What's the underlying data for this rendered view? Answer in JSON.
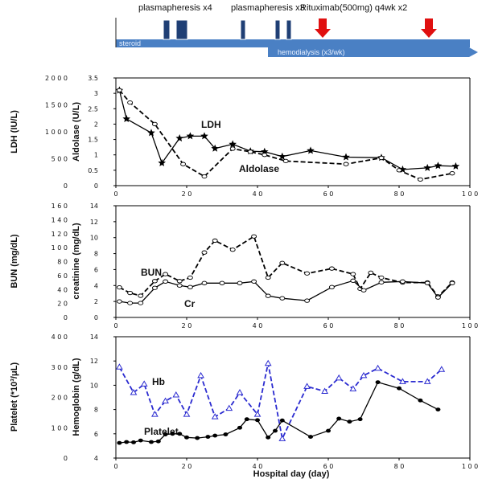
{
  "timeline": {
    "plasma1_label": "plasmapheresis x4",
    "plasma2_label": "plasmapheresis x3",
    "ritux_label": "Rituximab(500mg) q4wk x2",
    "steroid_label": "steroid",
    "hd_label": "hemodialysis (x3/wk)",
    "colors": {
      "bar": "#4a80c4",
      "block": "#1f3f75",
      "arrow": "#e01010"
    }
  },
  "xaxis": {
    "label": "Hospital day (day)",
    "ticks": [
      "0",
      "20",
      "40",
      "60",
      "80",
      "100"
    ]
  },
  "chart_data": [
    {
      "type": "line",
      "title": "",
      "x_range": [
        0,
        100
      ],
      "left_axis": {
        "label": "LDH (IU/L)",
        "ylim": [
          0,
          2000
        ],
        "ticks": [
          "0",
          "500",
          "1000",
          "1500",
          "2000"
        ]
      },
      "right_axis": {
        "label": "Aldolase (U/L)",
        "ylim": [
          0,
          3.5
        ],
        "ticks": [
          "0",
          "0.5",
          "1",
          "1.5",
          "2",
          "2.5",
          "3",
          "3.5"
        ]
      },
      "series": [
        {
          "name": "LDH",
          "axis": "left",
          "style": "solid",
          "marker": "star",
          "x": [
            1,
            3,
            10,
            13,
            18,
            21,
            25,
            28,
            33,
            38,
            42,
            47,
            55,
            65,
            75,
            81,
            88,
            91,
            96
          ],
          "y": [
            1770,
            1240,
            980,
            420,
            880,
            920,
            920,
            690,
            770,
            640,
            630,
            540,
            650,
            530,
            520,
            300,
            330,
            370,
            360
          ]
        },
        {
          "name": "Aldolase",
          "axis": "right",
          "style": "dashed",
          "marker": "circle",
          "x": [
            1,
            4,
            11,
            19,
            25,
            33,
            38,
            42,
            48,
            65,
            75,
            80,
            86,
            95
          ],
          "y": [
            3.1,
            2.7,
            2.0,
            0.7,
            0.3,
            1.2,
            1.1,
            1.0,
            0.8,
            0.7,
            0.9,
            0.5,
            0.2,
            0.4
          ]
        }
      ]
    },
    {
      "type": "line",
      "title": "",
      "x_range": [
        0,
        100
      ],
      "left_axis": {
        "label": "BUN (mg/dL)",
        "ylim": [
          0,
          160
        ],
        "ticks": [
          "0",
          "20",
          "40",
          "60",
          "80",
          "100",
          "120",
          "140",
          "160"
        ]
      },
      "right_axis": {
        "label": "creatinine (mg/dL)",
        "ylim": [
          0,
          14
        ],
        "ticks": [
          "0",
          "2",
          "4",
          "6",
          "8",
          "10",
          "12",
          "14"
        ]
      },
      "series": [
        {
          "name": "BUN",
          "axis": "left",
          "style": "dashed",
          "marker": "circle",
          "x": [
            1,
            4,
            7,
            11,
            14,
            18,
            21,
            25,
            28,
            33,
            39,
            43,
            47,
            54,
            61,
            67,
            69,
            72,
            75,
            81,
            88,
            91,
            95
          ],
          "y": [
            43,
            35,
            31,
            52,
            62,
            52,
            57,
            93,
            110,
            97,
            116,
            57,
            78,
            63,
            70,
            62,
            41,
            64,
            57,
            50,
            50,
            30,
            50
          ]
        },
        {
          "name": "Cr",
          "axis": "right",
          "style": "solid",
          "marker": "circle",
          "x": [
            1,
            4,
            7,
            11,
            14,
            18,
            21,
            25,
            30,
            35,
            39,
            43,
            47,
            54,
            61,
            67,
            70,
            75,
            81,
            88,
            91,
            95
          ],
          "y": [
            2.0,
            1.8,
            1.8,
            3.7,
            4.5,
            4.0,
            3.8,
            4.3,
            4.3,
            4.3,
            4.5,
            2.7,
            2.4,
            2.1,
            3.8,
            4.6,
            3.4,
            4.4,
            4.5,
            4.3,
            2.5,
            4.3
          ]
        }
      ]
    },
    {
      "type": "line",
      "title": "",
      "x_range": [
        0,
        100
      ],
      "left_axis": {
        "label": "Platelet (*10³/μL)",
        "ylim": [
          0,
          400
        ],
        "ticks": [
          "0",
          "100",
          "200",
          "300",
          "400"
        ]
      },
      "right_axis": {
        "label": "Hemoglobin (g/dL)",
        "ylim": [
          4,
          14
        ],
        "ticks": [
          "4",
          "6",
          "8",
          "10",
          "12",
          "14"
        ],
        "label_color": "#2b2bd0"
      },
      "series": [
        {
          "name": "Hb",
          "axis": "right",
          "style": "dashed",
          "marker": "triangle",
          "color": "#2b2bd0",
          "x": [
            1,
            5,
            8,
            11,
            14,
            17,
            20,
            24,
            28,
            32,
            35,
            40,
            43,
            47,
            54,
            59,
            63,
            67,
            70,
            74,
            81,
            88,
            92
          ],
          "y": [
            11.5,
            9.4,
            10.1,
            7.6,
            8.7,
            9.2,
            7.6,
            10.8,
            7.4,
            8.1,
            9.4,
            7.6,
            11.8,
            5.6,
            9.9,
            9.5,
            10.6,
            9.7,
            10.8,
            11.4,
            10.3,
            10.3,
            11.3
          ]
        },
        {
          "name": "Platelet",
          "axis": "left",
          "style": "solid",
          "marker": "filled-circle",
          "color": "#000000",
          "x": [
            1,
            3,
            5,
            7,
            10,
            12,
            14,
            16,
            18,
            20,
            23,
            26,
            28,
            31,
            35,
            37,
            40,
            43,
            45,
            47,
            55,
            60,
            63,
            66,
            69,
            74,
            80,
            86,
            91
          ],
          "y": [
            50,
            53,
            52,
            58,
            53,
            55,
            78,
            80,
            80,
            68,
            66,
            70,
            74,
            78,
            100,
            128,
            125,
            68,
            90,
            124,
            70,
            90,
            130,
            120,
            128,
            250,
            230,
            190,
            160
          ]
        }
      ]
    }
  ]
}
